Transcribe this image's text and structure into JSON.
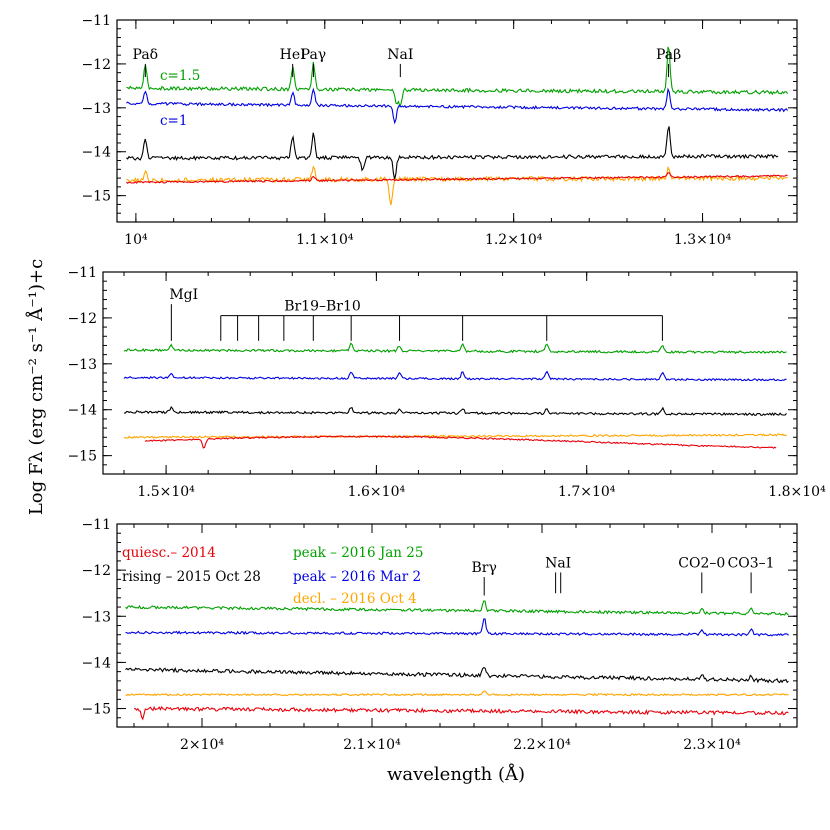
{
  "chart_data": {
    "type": "line",
    "ylabel": "Log Fλ (erg cm⁻² s⁻¹ Å⁻¹)+c",
    "xlabel": "wavelength (Å)",
    "colors": {
      "quiesc": "#e8000b",
      "rising": "#000000",
      "peak_jan": "#00a000",
      "peak_mar": "#0000e0",
      "decl": "#ffa500"
    },
    "legend": {
      "placement": "top-left of bottom panel",
      "entries": [
        {
          "key": "quiesc",
          "label": "quiesc.– 2014"
        },
        {
          "key": "rising",
          "label": "rising – 2015 Oct 28"
        },
        {
          "key": "peak_jan",
          "label": "peak – 2016 Jan 25"
        },
        {
          "key": "peak_mar",
          "label": "peak – 2016 Mar 2"
        },
        {
          "key": "decl",
          "label": "decl. – 2016 Oct 4"
        }
      ]
    },
    "offset_labels": [
      {
        "text": "c=1.5",
        "key": "peak_jan"
      },
      {
        "text": "c=1",
        "key": "peak_mar"
      }
    ],
    "panels": [
      {
        "xlim": [
          9900,
          13500
        ],
        "ylim": [
          -15.6,
          -11
        ],
        "xticks": [
          {
            "value": 10000,
            "label": "10⁴"
          },
          {
            "value": 11000,
            "label": "1.1×10⁴"
          },
          {
            "value": 12000,
            "label": "1.2×10⁴"
          },
          {
            "value": 13000,
            "label": "1.3×10⁴"
          }
        ],
        "yticks": [
          -15,
          -14,
          -13,
          -12,
          -11
        ],
        "markers": [
          {
            "label": "Paδ",
            "x": 10050,
            "y_top": -12.0,
            "y_bottom": -12.3
          },
          {
            "label": "HeI",
            "x": 10830,
            "y_top": -12.0,
            "y_bottom": -12.3
          },
          {
            "label": "Paγ",
            "x": 10940,
            "y_top": -12.0,
            "y_bottom": -12.3
          },
          {
            "label": "NaI",
            "x": 11400,
            "y_top": -12.0,
            "y_bottom": -12.3
          },
          {
            "label": "Paβ",
            "x": 12820,
            "y_top": -12.0,
            "y_bottom": -12.3
          }
        ],
        "series": [
          {
            "key": "peak_jan",
            "x_start": 9950,
            "x_end": 13450,
            "level_start": -12.55,
            "level_end": -12.65,
            "noise": 0.04,
            "lines": [
              {
                "x": 10050,
                "h": 0.5
              },
              {
                "x": 10830,
                "h": 0.5
              },
              {
                "x": 10940,
                "h": 0.6
              },
              {
                "x": 12820,
                "h": 1.05
              },
              {
                "x": 11400,
                "h": -0.35
              },
              {
                "x": 11380,
                "h": -0.3
              }
            ]
          },
          {
            "key": "peak_mar",
            "x_start": 9950,
            "x_end": 13450,
            "level_start": -12.9,
            "level_end": -13.05,
            "noise": 0.03,
            "lines": [
              {
                "x": 10050,
                "h": 0.3
              },
              {
                "x": 10830,
                "h": 0.3
              },
              {
                "x": 10940,
                "h": 0.35
              },
              {
                "x": 12820,
                "h": 0.45
              },
              {
                "x": 11370,
                "h": -0.4
              }
            ]
          },
          {
            "key": "rising",
            "x_start": 9950,
            "x_end": 13400,
            "level_start": -14.15,
            "level_end": -14.1,
            "noise": 0.04,
            "lines": [
              {
                "x": 10050,
                "h": 0.45
              },
              {
                "x": 10830,
                "h": 0.5
              },
              {
                "x": 10940,
                "h": 0.55
              },
              {
                "x": 12820,
                "h": 0.7
              },
              {
                "x": 11370,
                "h": -0.5
              },
              {
                "x": 11200,
                "h": -0.3
              }
            ]
          },
          {
            "key": "decl",
            "x_start": 9950,
            "x_end": 13450,
            "level_start": -14.65,
            "level_end": -14.6,
            "noise": 0.05,
            "lines": [
              {
                "x": 10050,
                "h": 0.2
              },
              {
                "x": 10940,
                "h": 0.3
              },
              {
                "x": 12820,
                "h": 0.25
              },
              {
                "x": 11350,
                "h": -0.55
              }
            ]
          },
          {
            "key": "quiesc",
            "x_start": 9950,
            "x_end": 13450,
            "level_start": -14.7,
            "level_end": -14.55,
            "noise": 0.02,
            "lines": [
              {
                "x": 10940,
                "h": 0.1
              },
              {
                "x": 12820,
                "h": 0.1
              }
            ]
          }
        ]
      },
      {
        "xlim": [
          14700,
          18000
        ],
        "ylim": [
          -15.4,
          -11
        ],
        "xticks": [
          {
            "value": 15000,
            "label": "1.5×10⁴"
          },
          {
            "value": 16000,
            "label": "1.6×10⁴"
          },
          {
            "value": 17000,
            "label": "1.7×10⁴"
          },
          {
            "value": 18000,
            "label": "1.8×10⁴"
          }
        ],
        "yticks": [
          -15,
          -14,
          -13,
          -12,
          -11
        ],
        "markers": [
          {
            "label": "MgI",
            "x": 15025,
            "y_top": -11.7,
            "y_bottom": -12.5
          }
        ],
        "bracket": {
          "label": "Br19–Br10",
          "y": -11.95,
          "y_bottom": -12.5,
          "xs": [
            15260,
            15340,
            15440,
            15560,
            15700,
            15880,
            16110,
            16410,
            16810,
            17360
          ]
        },
        "series": [
          {
            "key": "peak_jan",
            "x_start": 14800,
            "x_end": 17950,
            "level_start": -12.7,
            "level_end": -12.75,
            "noise": 0.025,
            "lines": [
              {
                "x": 15025,
                "h": 0.1
              },
              {
                "x": 15880,
                "h": 0.15
              },
              {
                "x": 16110,
                "h": 0.12
              },
              {
                "x": 16410,
                "h": 0.15
              },
              {
                "x": 16810,
                "h": 0.15
              },
              {
                "x": 17360,
                "h": 0.15
              }
            ]
          },
          {
            "key": "peak_mar",
            "x_start": 14800,
            "x_end": 17950,
            "level_start": -13.3,
            "level_end": -13.35,
            "noise": 0.02,
            "lines": [
              {
                "x": 15025,
                "h": 0.1
              },
              {
                "x": 15880,
                "h": 0.15
              },
              {
                "x": 16110,
                "h": 0.12
              },
              {
                "x": 16410,
                "h": 0.15
              },
              {
                "x": 16810,
                "h": 0.15
              },
              {
                "x": 17360,
                "h": 0.15
              }
            ]
          },
          {
            "key": "rising",
            "x_start": 14800,
            "x_end": 17950,
            "level_start": -14.05,
            "level_end": -14.1,
            "noise": 0.025,
            "lines": [
              {
                "x": 15025,
                "h": 0.1
              },
              {
                "x": 15880,
                "h": 0.12
              },
              {
                "x": 16110,
                "h": 0.1
              },
              {
                "x": 16410,
                "h": 0.1
              },
              {
                "x": 16810,
                "h": 0.12
              },
              {
                "x": 17360,
                "h": 0.12
              }
            ]
          },
          {
            "key": "decl",
            "x_start": 14800,
            "x_end": 17950,
            "level_start": -14.6,
            "level_end": -14.55,
            "noise": 0.02,
            "lines": []
          },
          {
            "key": "quiesc",
            "x_start": 14900,
            "x_end": 17900,
            "level_start": -14.9,
            "level_end": -14.9,
            "noise": 0.015,
            "lines": [
              {
                "x": 15180,
                "h": -0.2
              }
            ],
            "bump": {
              "peak": -14.55,
              "center": 15900
            }
          }
        ]
      },
      {
        "xlim": [
          19500,
          23500
        ],
        "ylim": [
          -15.4,
          -11
        ],
        "xticks": [
          {
            "value": 20000,
            "label": "2×10⁴"
          },
          {
            "value": 21000,
            "label": "2.1×10⁴"
          },
          {
            "value": 22000,
            "label": "2.2×10⁴"
          },
          {
            "value": 23000,
            "label": "2.3×10⁴"
          }
        ],
        "yticks": [
          -15,
          -14,
          -13,
          -12,
          -11
        ],
        "markers": [
          {
            "label": "Brγ",
            "x": 21660,
            "y_top": -12.15,
            "y_bottom": -12.55
          },
          {
            "label": "NaI",
            "x": 22080,
            "x2": 22110,
            "y_top": -12.05,
            "y_bottom": -12.5
          },
          {
            "label": "CO2–0",
            "x": 22940,
            "y_top": -12.05,
            "y_bottom": -12.5
          },
          {
            "label": "CO3–1",
            "x": 23230,
            "y_top": -12.05,
            "y_bottom": -12.5
          }
        ],
        "series": [
          {
            "key": "peak_jan",
            "x_start": 19550,
            "x_end": 23450,
            "level_start": -12.8,
            "level_end": -12.95,
            "noise": 0.03,
            "lines": [
              {
                "x": 21660,
                "h": 0.25
              },
              {
                "x": 22940,
                "h": 0.1
              },
              {
                "x": 23230,
                "h": 0.1
              }
            ]
          },
          {
            "key": "peak_mar",
            "x_start": 19550,
            "x_end": 23450,
            "level_start": -13.35,
            "level_end": -13.4,
            "noise": 0.025,
            "lines": [
              {
                "x": 21660,
                "h": 0.35
              },
              {
                "x": 22940,
                "h": 0.1
              },
              {
                "x": 23230,
                "h": 0.12
              }
            ]
          },
          {
            "key": "rising",
            "x_start": 19550,
            "x_end": 23450,
            "level_start": -14.15,
            "level_end": -14.4,
            "noise": 0.04,
            "lines": [
              {
                "x": 21660,
                "h": 0.2
              },
              {
                "x": 22940,
                "h": 0.1
              },
              {
                "x": 23230,
                "h": 0.1
              }
            ]
          },
          {
            "key": "decl",
            "x_start": 19550,
            "x_end": 23450,
            "level_start": -14.7,
            "level_end": -14.7,
            "noise": 0.02,
            "lines": [
              {
                "x": 21660,
                "h": 0.08
              }
            ]
          },
          {
            "key": "quiesc",
            "x_start": 19600,
            "x_end": 23450,
            "level_start": -15.0,
            "level_end": -15.1,
            "noise": 0.04,
            "lines": [
              {
                "x": 19650,
                "h": -0.2
              }
            ]
          }
        ]
      }
    ]
  }
}
